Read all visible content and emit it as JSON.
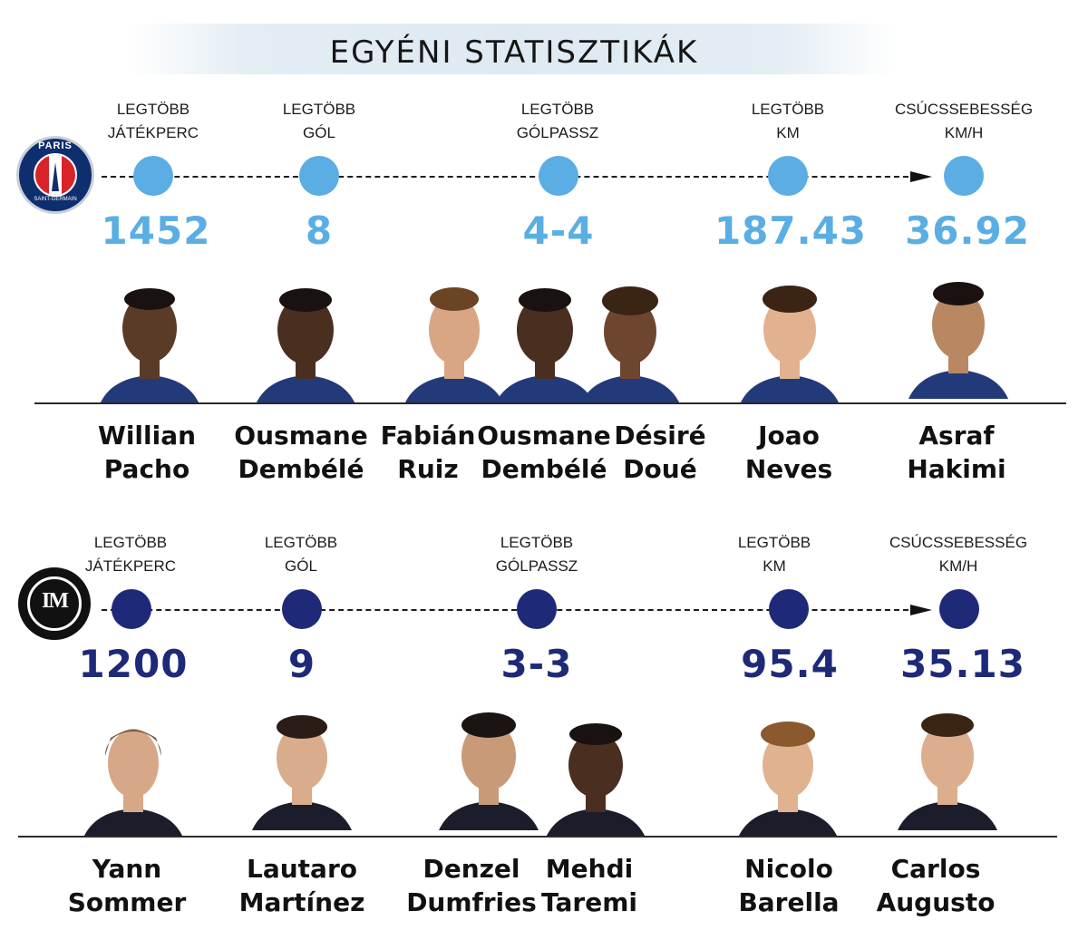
{
  "title": "EGYÉNI STATISZTIKÁK",
  "colors": {
    "psg_accent": "#5aaee3",
    "inter_accent": "#1e2a78"
  },
  "psg": {
    "logo": {
      "top": "PARIS",
      "bottom": "SAINT-GERMAIN"
    },
    "stats": [
      {
        "label_1": "LEGTÖBB",
        "label_2": "JÁTÉKPERC",
        "value": "1452"
      },
      {
        "label_1": "LEGTÖBB",
        "label_2": "GÓL",
        "value": "8"
      },
      {
        "label_1": "LEGTÖBB",
        "label_2": "GÓLPASSZ",
        "value": "4-4"
      },
      {
        "label_1": "LEGTÖBB",
        "label_2": "KM",
        "value": "187.43"
      },
      {
        "label_1": "CSÚCSSEBESSÉG",
        "label_2": "KM/H",
        "value": "36.92"
      }
    ],
    "players": [
      {
        "first": "Willian",
        "last": "Pacho"
      },
      {
        "first": "Ousmane",
        "last": "Dembélé"
      },
      {
        "first": "Fabián",
        "last": "Ruiz"
      },
      {
        "first": "Ousmane",
        "last": "Dembélé"
      },
      {
        "first": "Désiré",
        "last": "Doué"
      },
      {
        "first": "Joao",
        "last": "Neves"
      },
      {
        "first": "Asraf",
        "last": "Hakimi"
      }
    ]
  },
  "inter": {
    "stats": [
      {
        "label_1": "LEGTÖBB",
        "label_2": "JÁTÉKPERC",
        "value": "1200"
      },
      {
        "label_1": "LEGTÖBB",
        "label_2": "GÓL",
        "value": "9"
      },
      {
        "label_1": "LEGTÖBB",
        "label_2": "GÓLPASSZ",
        "value": "3-3"
      },
      {
        "label_1": "LEGTÖBB",
        "label_2": "KM",
        "value": "95.4"
      },
      {
        "label_1": "CSÚCSSEBESSÉG",
        "label_2": "KM/H",
        "value": "35.13"
      }
    ],
    "players": [
      {
        "first": "Yann",
        "last": "Sommer"
      },
      {
        "first": "Lautaro",
        "last": "Martínez"
      },
      {
        "first": "Denzel",
        "last": "Dumfries"
      },
      {
        "first": "Mehdi",
        "last": "Taremi"
      },
      {
        "first": "Nicolo",
        "last": "Barella"
      },
      {
        "first": "Carlos",
        "last": "Augusto"
      }
    ]
  }
}
